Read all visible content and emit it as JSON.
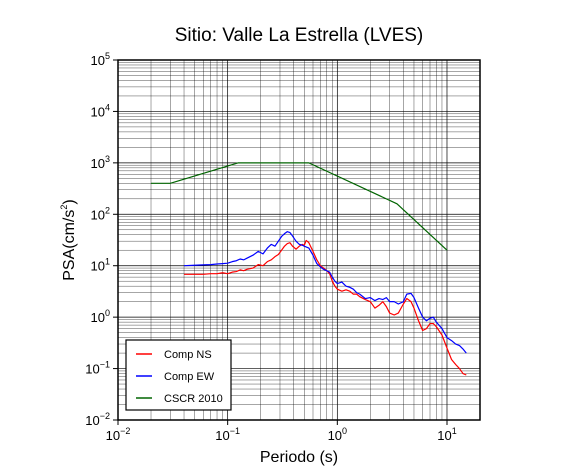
{
  "chart_data": {
    "type": "line",
    "title": "Sitio: Valle La Estrella (LVES)",
    "xlabel": "Periodo (s)",
    "ylabel_main": "PSA(cm/s",
    "ylabel_sup": "2",
    "ylabel_end": ")",
    "xscale": "log",
    "yscale": "log",
    "xlim": [
      0.01,
      20
    ],
    "ylim": [
      0.01,
      100000
    ],
    "grid": true,
    "x_ticks": [
      {
        "value": 0.01,
        "base": "10",
        "exp": "−2"
      },
      {
        "value": 0.1,
        "base": "10",
        "exp": "−1"
      },
      {
        "value": 1,
        "base": "10",
        "exp": "0"
      },
      {
        "value": 10,
        "base": "10",
        "exp": "1"
      }
    ],
    "y_ticks": [
      {
        "value": 0.01,
        "base": "10",
        "exp": "−2"
      },
      {
        "value": 0.1,
        "base": "10",
        "exp": "−1"
      },
      {
        "value": 1,
        "base": "10",
        "exp": "0"
      },
      {
        "value": 10,
        "base": "10",
        "exp": "1"
      },
      {
        "value": 100,
        "base": "10",
        "exp": "2"
      },
      {
        "value": 1000,
        "base": "10",
        "exp": "3"
      },
      {
        "value": 10000,
        "base": "10",
        "exp": "4"
      },
      {
        "value": 100000,
        "base": "10",
        "exp": "5"
      }
    ],
    "legend_position": "bottom-left",
    "series": [
      {
        "name": "Comp NS",
        "color": "#ff0000",
        "points": [
          [
            0.04,
            6.8
          ],
          [
            0.05,
            6.8
          ],
          [
            0.06,
            6.8
          ],
          [
            0.07,
            7.0
          ],
          [
            0.08,
            7.0
          ],
          [
            0.09,
            7.3
          ],
          [
            0.1,
            7.0
          ],
          [
            0.11,
            7.5
          ],
          [
            0.12,
            7.7
          ],
          [
            0.13,
            8.3
          ],
          [
            0.14,
            8.0
          ],
          [
            0.15,
            8.5
          ],
          [
            0.17,
            9.0
          ],
          [
            0.19,
            10.5
          ],
          [
            0.21,
            10.0
          ],
          [
            0.23,
            12.0
          ],
          [
            0.25,
            13.0
          ],
          [
            0.27,
            15.0
          ],
          [
            0.29,
            16.5
          ],
          [
            0.31,
            20.0
          ],
          [
            0.33,
            24.0
          ],
          [
            0.35,
            27.0
          ],
          [
            0.37,
            28.0
          ],
          [
            0.39,
            24.0
          ],
          [
            0.42,
            21.0
          ],
          [
            0.45,
            24.0
          ],
          [
            0.48,
            26.0
          ],
          [
            0.5,
            25.0
          ],
          [
            0.52,
            31.0
          ],
          [
            0.55,
            28.0
          ],
          [
            0.6,
            19.0
          ],
          [
            0.65,
            13.0
          ],
          [
            0.7,
            10.0
          ],
          [
            0.75,
            9.0
          ],
          [
            0.8,
            8.0
          ],
          [
            0.85,
            7.0
          ],
          [
            0.9,
            5.0
          ],
          [
            0.95,
            4.0
          ],
          [
            1.0,
            3.5
          ],
          [
            1.1,
            3.2
          ],
          [
            1.2,
            3.4
          ],
          [
            1.3,
            3.2
          ],
          [
            1.4,
            2.8
          ],
          [
            1.5,
            2.8
          ],
          [
            1.6,
            2.5
          ],
          [
            1.8,
            2.2
          ],
          [
            2.0,
            2.0
          ],
          [
            2.2,
            1.5
          ],
          [
            2.4,
            1.7
          ],
          [
            2.6,
            2.0
          ],
          [
            2.8,
            1.6
          ],
          [
            3.0,
            1.2
          ],
          [
            3.3,
            1.1
          ],
          [
            3.6,
            1.2
          ],
          [
            4.0,
            1.8
          ],
          [
            4.3,
            2.3
          ],
          [
            4.7,
            2.0
          ],
          [
            5.0,
            1.5
          ],
          [
            5.5,
            0.85
          ],
          [
            6.0,
            0.55
          ],
          [
            6.5,
            0.6
          ],
          [
            7.0,
            0.75
          ],
          [
            7.5,
            0.75
          ],
          [
            8.0,
            0.65
          ],
          [
            9.0,
            0.45
          ],
          [
            10.0,
            0.25
          ],
          [
            11.0,
            0.15
          ],
          [
            12.0,
            0.12
          ],
          [
            13.0,
            0.1
          ],
          [
            14.0,
            0.08
          ],
          [
            15.0,
            0.075
          ]
        ]
      },
      {
        "name": "Comp EW",
        "color": "#0000ff",
        "points": [
          [
            0.04,
            10.0
          ],
          [
            0.05,
            10.2
          ],
          [
            0.06,
            10.4
          ],
          [
            0.07,
            10.5
          ],
          [
            0.08,
            10.8
          ],
          [
            0.09,
            11.0
          ],
          [
            0.1,
            11.2
          ],
          [
            0.11,
            12.0
          ],
          [
            0.12,
            12.5
          ],
          [
            0.13,
            13.5
          ],
          [
            0.14,
            13.0
          ],
          [
            0.15,
            14.0
          ],
          [
            0.17,
            16.0
          ],
          [
            0.19,
            19.0
          ],
          [
            0.21,
            17.0
          ],
          [
            0.23,
            22.0
          ],
          [
            0.25,
            26.0
          ],
          [
            0.27,
            24.0
          ],
          [
            0.29,
            30.0
          ],
          [
            0.31,
            37.0
          ],
          [
            0.33,
            42.0
          ],
          [
            0.35,
            46.0
          ],
          [
            0.37,
            44.0
          ],
          [
            0.39,
            38.0
          ],
          [
            0.42,
            30.0
          ],
          [
            0.45,
            26.0
          ],
          [
            0.48,
            25.0
          ],
          [
            0.5,
            24.0
          ],
          [
            0.55,
            22.0
          ],
          [
            0.6,
            16.0
          ],
          [
            0.65,
            11.0
          ],
          [
            0.7,
            9.5
          ],
          [
            0.75,
            8.5
          ],
          [
            0.8,
            8.0
          ],
          [
            0.85,
            7.5
          ],
          [
            0.9,
            6.0
          ],
          [
            0.95,
            5.0
          ],
          [
            1.0,
            4.5
          ],
          [
            1.1,
            4.8
          ],
          [
            1.2,
            4.0
          ],
          [
            1.3,
            3.8
          ],
          [
            1.4,
            3.5
          ],
          [
            1.5,
            3.0
          ],
          [
            1.6,
            2.8
          ],
          [
            1.8,
            2.3
          ],
          [
            2.0,
            2.4
          ],
          [
            2.2,
            2.1
          ],
          [
            2.4,
            2.3
          ],
          [
            2.6,
            2.2
          ],
          [
            2.8,
            2.4
          ],
          [
            3.0,
            2.0
          ],
          [
            3.3,
            2.0
          ],
          [
            3.6,
            1.8
          ],
          [
            4.0,
            2.0
          ],
          [
            4.3,
            2.8
          ],
          [
            4.7,
            2.9
          ],
          [
            5.0,
            2.4
          ],
          [
            5.5,
            1.5
          ],
          [
            6.0,
            1.0
          ],
          [
            6.5,
            0.85
          ],
          [
            7.0,
            0.95
          ],
          [
            7.5,
            1.0
          ],
          [
            8.0,
            0.8
          ],
          [
            9.0,
            0.6
          ],
          [
            10.0,
            0.4
          ],
          [
            11.0,
            0.35
          ],
          [
            12.0,
            0.3
          ],
          [
            13.0,
            0.28
          ],
          [
            14.0,
            0.24
          ],
          [
            15.0,
            0.2
          ]
        ]
      },
      {
        "name": "CSCR 2010",
        "color": "#006400",
        "points": [
          [
            0.02,
            400
          ],
          [
            0.03,
            400
          ],
          [
            0.125,
            1000
          ],
          [
            0.55,
            1000
          ],
          [
            3.5,
            160
          ],
          [
            10.0,
            20
          ]
        ]
      }
    ]
  }
}
